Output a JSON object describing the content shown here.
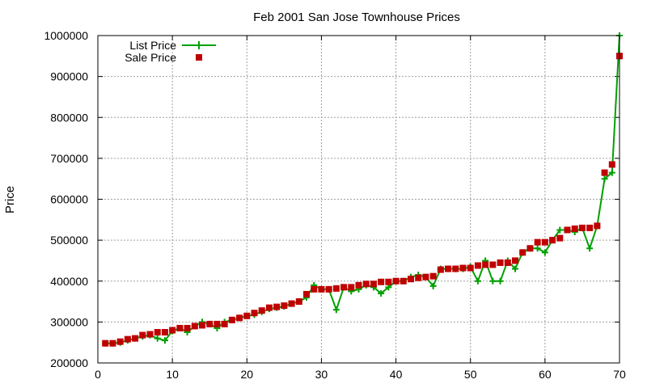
{
  "chart_data": {
    "type": "line",
    "title": "Feb 2001 San Jose Townhouse Prices",
    "xlabel": "",
    "ylabel": "Price",
    "xlim": [
      0,
      70
    ],
    "ylim": [
      200000,
      1000000
    ],
    "x_ticks": [
      0,
      10,
      20,
      30,
      40,
      50,
      60,
      70
    ],
    "y_ticks": [
      200000,
      300000,
      400000,
      500000,
      600000,
      700000,
      800000,
      900000,
      1000000
    ],
    "grid": true,
    "legend_position": "top-left",
    "x": [
      1,
      2,
      3,
      4,
      5,
      6,
      7,
      8,
      9,
      10,
      11,
      12,
      13,
      14,
      15,
      16,
      17,
      18,
      19,
      20,
      21,
      22,
      23,
      24,
      25,
      26,
      27,
      28,
      29,
      30,
      31,
      32,
      33,
      34,
      35,
      36,
      37,
      38,
      39,
      40,
      41,
      42,
      43,
      44,
      45,
      46,
      47,
      48,
      49,
      50,
      51,
      52,
      53,
      54,
      55,
      56,
      57,
      58,
      59,
      60,
      61,
      62,
      63,
      64,
      65,
      66,
      67,
      68,
      69,
      70
    ],
    "series": [
      {
        "name": "List Price",
        "style": "line+plus",
        "color": "#00a000",
        "values": [
          248000,
          248000,
          250000,
          255000,
          260000,
          265000,
          268000,
          260000,
          255000,
          278000,
          285000,
          275000,
          290000,
          300000,
          295000,
          285000,
          300000,
          305000,
          310000,
          315000,
          318000,
          325000,
          332000,
          335000,
          338000,
          345000,
          350000,
          360000,
          390000,
          380000,
          380000,
          330000,
          385000,
          375000,
          380000,
          390000,
          385000,
          370000,
          385000,
          400000,
          400000,
          410000,
          415000,
          410000,
          388000,
          430000,
          430000,
          430000,
          430000,
          435000,
          400000,
          450000,
          400000,
          400000,
          450000,
          430000,
          470000,
          480000,
          480000,
          470000,
          500000,
          525000,
          525000,
          520000,
          530000,
          480000,
          535000,
          650000,
          665000,
          1000000
        ]
      },
      {
        "name": "Sale Price",
        "style": "square",
        "color": "#c00000",
        "values": [
          248000,
          248000,
          252000,
          258000,
          260000,
          268000,
          270000,
          275000,
          275000,
          280000,
          285000,
          285000,
          290000,
          292000,
          295000,
          295000,
          295000,
          305000,
          310000,
          315000,
          322000,
          328000,
          335000,
          337000,
          340000,
          345000,
          350000,
          368000,
          380000,
          380000,
          380000,
          382000,
          385000,
          385000,
          390000,
          393000,
          393000,
          398000,
          398000,
          400000,
          400000,
          405000,
          408000,
          410000,
          412000,
          428000,
          430000,
          430000,
          432000,
          432000,
          438000,
          440000,
          440000,
          445000,
          445000,
          450000,
          470000,
          480000,
          495000,
          495000,
          500000,
          505000,
          525000,
          528000,
          530000,
          530000,
          535000,
          665000,
          685000,
          950000
        ]
      }
    ]
  }
}
